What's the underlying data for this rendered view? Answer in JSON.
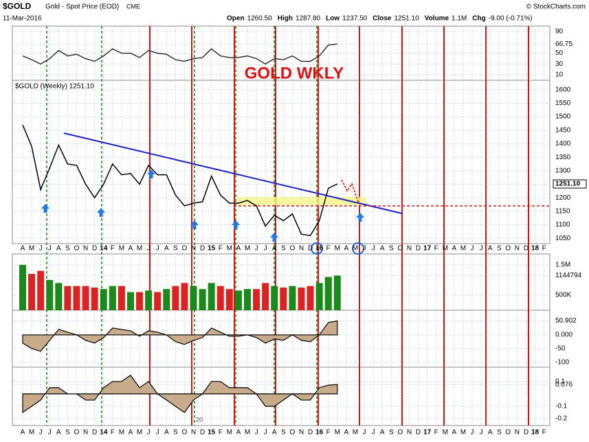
{
  "header": {
    "symbol": "$GOLD",
    "name": "Gold - Spot Price (EOD)",
    "exchange": "CME",
    "source": "© StockCharts.com",
    "date": "11-Mar-2016",
    "stats": [
      {
        "label": "Open",
        "value": "1260.50"
      },
      {
        "label": "High",
        "value": "1287.80"
      },
      {
        "label": "Low",
        "value": "1237.50"
      },
      {
        "label": "Close",
        "value": "1251.10"
      },
      {
        "label": "Volume",
        "value": "1.1M"
      },
      {
        "label": "Chg",
        "value": "-9.00 (-0.71%)"
      }
    ]
  },
  "chart_data": [
    {
      "type": "line",
      "title": "GOLD WKLY",
      "legend": "$GOLD (Weekly) 1251.10",
      "color": "#000000",
      "categories": [
        "A",
        "M",
        "J",
        "J",
        "A",
        "S",
        "O",
        "N",
        "D",
        "14",
        "F",
        "M",
        "A",
        "M",
        "J",
        "J",
        "A",
        "S",
        "O",
        "N",
        "D",
        "15",
        "F",
        "M",
        "A",
        "M",
        "J",
        "J",
        "A",
        "S",
        "O",
        "N",
        "D",
        "16",
        "F",
        "M",
        "A",
        "M",
        "J",
        "J",
        "A",
        "S",
        "O",
        "N",
        "D",
        "17",
        "F",
        "M",
        "A",
        "M",
        "J",
        "J",
        "A",
        "S",
        "O",
        "N",
        "D",
        "18",
        "F"
      ],
      "values": [
        1470,
        1390,
        1230,
        1310,
        1395,
        1325,
        1320,
        1250,
        1200,
        1250,
        1325,
        1285,
        1290,
        1250,
        1320,
        1285,
        1285,
        1210,
        1170,
        1180,
        1185,
        1280,
        1210,
        1180,
        1180,
        1190,
        1170,
        1095,
        1135,
        1115,
        1140,
        1065,
        1060,
        1115,
        1235,
        1251.1,
        null,
        null,
        null,
        null,
        null,
        null,
        null,
        null,
        null,
        null,
        null,
        null,
        null,
        null,
        null,
        null,
        null,
        null,
        null,
        null,
        null,
        null,
        null
      ],
      "ylim": [
        1030,
        1635
      ],
      "yticks": [
        1050,
        1100,
        1150,
        1200,
        1250,
        1300,
        1350,
        1400,
        1450,
        1500,
        1550,
        1600
      ],
      "flag": {
        "value": 1251.1,
        "label": "1251.10"
      }
    },
    {
      "type": "line",
      "color": "#333333",
      "values": [
        45,
        38,
        30,
        40,
        55,
        45,
        48,
        40,
        35,
        45,
        58,
        50,
        50,
        42,
        55,
        50,
        48,
        38,
        35,
        40,
        42,
        58,
        45,
        42,
        42,
        45,
        40,
        30,
        40,
        38,
        45,
        35,
        35,
        45,
        65,
        66.75,
        null,
        null,
        null,
        null,
        null,
        null,
        null,
        null,
        null,
        null,
        null,
        null,
        null,
        null,
        null,
        null,
        null,
        null,
        null,
        null,
        null,
        null,
        null
      ],
      "ylim": [
        0,
        100
      ],
      "yticks": [
        10,
        30,
        50,
        66.75,
        90
      ]
    },
    {
      "type": "bar",
      "colors": [
        "#1a8a1a",
        "#dd2222"
      ],
      "values": [
        1500000,
        1200000,
        1300000,
        1000000,
        900000,
        800000,
        800000,
        800000,
        750000,
        700000,
        800000,
        800000,
        600000,
        600000,
        650000,
        600000,
        700000,
        800000,
        900000,
        800000,
        700000,
        900000,
        800000,
        700000,
        650000,
        700000,
        700000,
        900000,
        800000,
        750000,
        800000,
        750000,
        800000,
        900000,
        1100000,
        1144794,
        null,
        null,
        null,
        null,
        null,
        null,
        null,
        null,
        null,
        null,
        null,
        null,
        null,
        null,
        null,
        null,
        null,
        null,
        null,
        null,
        null,
        null,
        null
      ],
      "ylim": [
        0,
        1860000
      ],
      "yticks": [
        {
          "value": 500000,
          "label": "500K"
        },
        1144794,
        {
          "value": 1500000,
          "label": "1.5M"
        }
      ]
    },
    {
      "type": "area",
      "color": "#c8ab8a",
      "values": [
        -30,
        -50,
        -60,
        -20,
        20,
        10,
        0,
        -20,
        -30,
        -10,
        25,
        20,
        15,
        -5,
        15,
        10,
        0,
        -25,
        -35,
        -20,
        -10,
        25,
        10,
        -5,
        -5,
        0,
        -10,
        -30,
        -15,
        -20,
        0,
        -20,
        -25,
        0,
        45,
        50.902,
        null,
        null,
        null,
        null,
        null,
        null,
        null,
        null,
        null,
        null,
        null,
        null,
        null,
        null,
        null,
        null,
        null,
        null,
        null,
        null,
        null,
        null,
        null
      ],
      "ylim": [
        -118,
        90
      ],
      "yticks": [
        -100,
        -50,
        {
          "value": 0,
          "label": "0.000"
        },
        50.902
      ]
    },
    {
      "type": "area",
      "color": "#c8ab8a",
      "annotation": "20",
      "values": [
        -0.15,
        -0.1,
        -0.05,
        0.05,
        0.05,
        0,
        0,
        -0.05,
        -0.05,
        0.05,
        0.1,
        0.1,
        0.15,
        0.05,
        0.1,
        0,
        -0.05,
        -0.1,
        -0.15,
        -0.05,
        0,
        0.1,
        0.1,
        0.05,
        0.05,
        0.05,
        0,
        -0.1,
        -0.1,
        -0.05,
        0,
        -0.05,
        -0.05,
        0.05,
        0.07,
        0.076,
        null,
        null,
        null,
        null,
        null,
        null,
        null,
        null,
        null,
        null,
        null,
        null,
        null,
        null,
        null,
        null,
        null,
        null,
        null,
        null,
        null,
        null,
        null
      ],
      "ylim": [
        -0.255,
        0.215
      ],
      "yticks": [
        -0.2,
        -0.1,
        0.076,
        0.1
      ]
    }
  ]
}
